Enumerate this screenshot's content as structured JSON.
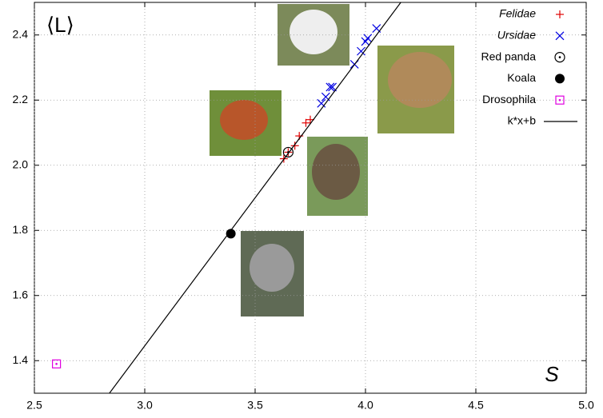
{
  "chart_data": {
    "type": "scatter",
    "xlabel": "S",
    "ylabel": "⟨L⟩",
    "xlim": [
      2.5,
      5.0
    ],
    "ylim": [
      1.3,
      2.5
    ],
    "xticks": [
      2.5,
      {
        "value": 3,
        "label": "3.0"
      },
      3.5,
      {
        "value": 4,
        "label": "4.0"
      },
      4.5,
      {
        "value": 5,
        "label": "5.0"
      }
    ],
    "yticks": [
      1.4,
      1.6,
      1.8,
      {
        "value": 2,
        "label": "2.0"
      },
      2.2,
      2.4
    ],
    "grid": true,
    "legend": "top-right",
    "series": [
      {
        "name": "Felidae",
        "color": "#e00000",
        "marker": "plus",
        "font_style": "italic",
        "x": [
          3.63,
          3.65,
          3.68,
          3.7,
          3.73,
          3.75
        ],
        "values": [
          2.02,
          2.04,
          2.06,
          2.09,
          2.13,
          2.14
        ]
      },
      {
        "name": "Ursidae",
        "color": "#0000e0",
        "marker": "cross",
        "font_style": "italic",
        "x": [
          3.8,
          3.82,
          3.84,
          3.85,
          3.95,
          3.98,
          4.0,
          4.01,
          4.05
        ],
        "values": [
          2.19,
          2.21,
          2.24,
          2.24,
          2.31,
          2.35,
          2.38,
          2.39,
          2.42
        ]
      },
      {
        "name": "Red panda",
        "color": "#000000",
        "marker": "circle-dot",
        "x": [
          3.65
        ],
        "values": [
          2.04
        ]
      },
      {
        "name": "Koala",
        "color": "#000000",
        "marker": "disc",
        "x": [
          3.39
        ],
        "values": [
          1.79
        ]
      },
      {
        "name": "Drosophila",
        "color": "#e000e0",
        "marker": "square-dot",
        "x": [
          2.6
        ],
        "values": [
          1.39
        ]
      },
      {
        "name": "k*x+b",
        "color": "#000000",
        "marker": "line",
        "x": [
          2.84,
          4.16
        ],
        "values": [
          1.3,
          2.5
        ]
      }
    ]
  }
}
